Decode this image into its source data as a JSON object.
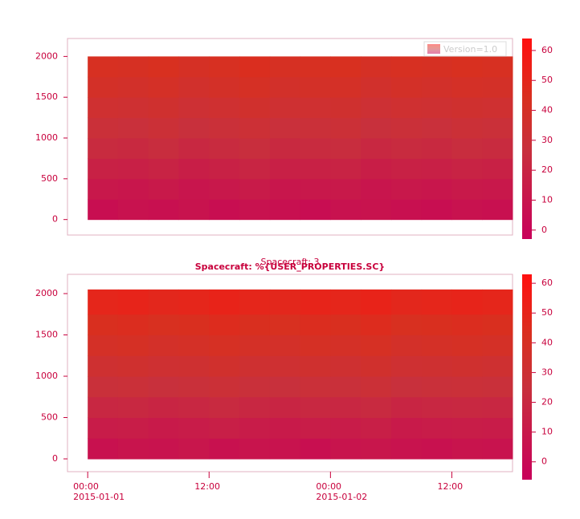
{
  "chart_data": [
    {
      "type": "heatmap",
      "xbins": [
        0,
        3,
        6,
        9,
        12,
        15,
        18,
        21,
        24,
        27,
        30,
        33,
        36,
        39,
        42
      ],
      "ybins": [
        0,
        250,
        500,
        750,
        1000,
        1250,
        1500,
        1750,
        2000
      ],
      "z": [
        [
          6,
          8,
          7,
          9,
          6,
          8,
          7,
          5,
          8,
          9,
          7,
          6,
          8,
          7
        ],
        [
          12,
          11,
          13,
          10,
          12,
          14,
          11,
          12,
          13,
          10,
          12,
          11,
          13,
          12
        ],
        [
          18,
          17,
          19,
          16,
          18,
          20,
          17,
          18,
          19,
          16,
          18,
          17,
          19,
          18
        ],
        [
          24,
          23,
          25,
          22,
          24,
          26,
          23,
          24,
          25,
          22,
          24,
          23,
          25,
          24
        ],
        [
          29,
          28,
          30,
          27,
          29,
          31,
          28,
          29,
          30,
          27,
          29,
          28,
          30,
          29
        ],
        [
          34,
          33,
          35,
          32,
          34,
          36,
          33,
          34,
          35,
          32,
          34,
          33,
          35,
          34
        ],
        [
          39,
          38,
          40,
          37,
          39,
          41,
          38,
          39,
          40,
          37,
          39,
          38,
          40,
          39
        ],
        [
          43,
          42,
          44,
          41,
          43,
          45,
          42,
          43,
          44,
          41,
          43,
          42,
          44,
          43
        ]
      ],
      "colorscale": [
        [
          0,
          "#c8005a"
        ],
        [
          0.45,
          "#c8303c"
        ],
        [
          0.7,
          "#d83020"
        ],
        [
          1,
          "#ff1010"
        ]
      ],
      "clim": [
        -3,
        64
      ],
      "cticks": [
        0,
        10,
        20,
        30,
        40,
        50,
        60
      ],
      "xlim": [
        -2,
        42
      ],
      "ylim": [
        -190,
        2220
      ],
      "yticks": [
        0,
        500,
        1000,
        1500,
        2000
      ],
      "legend": "Version=1.0",
      "legend_position": "top-right"
    },
    {
      "type": "heatmap",
      "title": "Spacecraft: %{USER_PROPERTIES.SC}",
      "annotation": "Spacecraft: 3",
      "xbins": [
        0,
        3,
        6,
        9,
        12,
        15,
        18,
        21,
        24,
        27,
        30,
        33,
        36,
        39,
        42
      ],
      "ybins": [
        0,
        250,
        500,
        750,
        1000,
        1250,
        1500,
        1750,
        2050
      ],
      "z": [
        [
          5,
          7,
          6,
          8,
          5,
          7,
          6,
          4,
          7,
          8,
          6,
          5,
          7,
          6
        ],
        [
          12,
          13,
          11,
          12,
          14,
          12,
          11,
          13,
          12,
          14,
          11,
          12,
          13,
          12
        ],
        [
          19,
          20,
          18,
          19,
          21,
          19,
          18,
          20,
          19,
          21,
          18,
          19,
          20,
          19
        ],
        [
          26,
          27,
          25,
          26,
          28,
          26,
          25,
          27,
          26,
          28,
          25,
          26,
          27,
          26
        ],
        [
          32,
          33,
          31,
          32,
          34,
          32,
          31,
          33,
          32,
          34,
          31,
          32,
          33,
          32
        ],
        [
          38,
          39,
          37,
          38,
          40,
          38,
          37,
          39,
          38,
          40,
          37,
          38,
          39,
          38
        ],
        [
          43,
          44,
          42,
          43,
          45,
          43,
          42,
          44,
          43,
          45,
          42,
          43,
          44,
          43
        ],
        [
          49,
          50,
          48,
          49,
          51,
          49,
          48,
          50,
          49,
          51,
          48,
          49,
          50,
          49
        ]
      ],
      "colorscale": [
        [
          0,
          "#c8005a"
        ],
        [
          0.45,
          "#c8303c"
        ],
        [
          0.7,
          "#d83020"
        ],
        [
          1,
          "#ff1010"
        ]
      ],
      "clim": [
        -6,
        63
      ],
      "cticks": [
        0,
        10,
        20,
        30,
        40,
        50,
        60
      ],
      "xlim": [
        -2,
        42
      ],
      "ylim": [
        -155,
        2233
      ],
      "yticks": [
        0,
        500,
        1000,
        1500,
        2000
      ],
      "xticks": [
        {
          "value": 0,
          "label": "00:00\n2015-01-01"
        },
        {
          "value": 12,
          "label": "12:00"
        },
        {
          "value": 24,
          "label": "00:00\n2015-01-02"
        },
        {
          "value": 36,
          "label": "12:00"
        }
      ]
    }
  ]
}
